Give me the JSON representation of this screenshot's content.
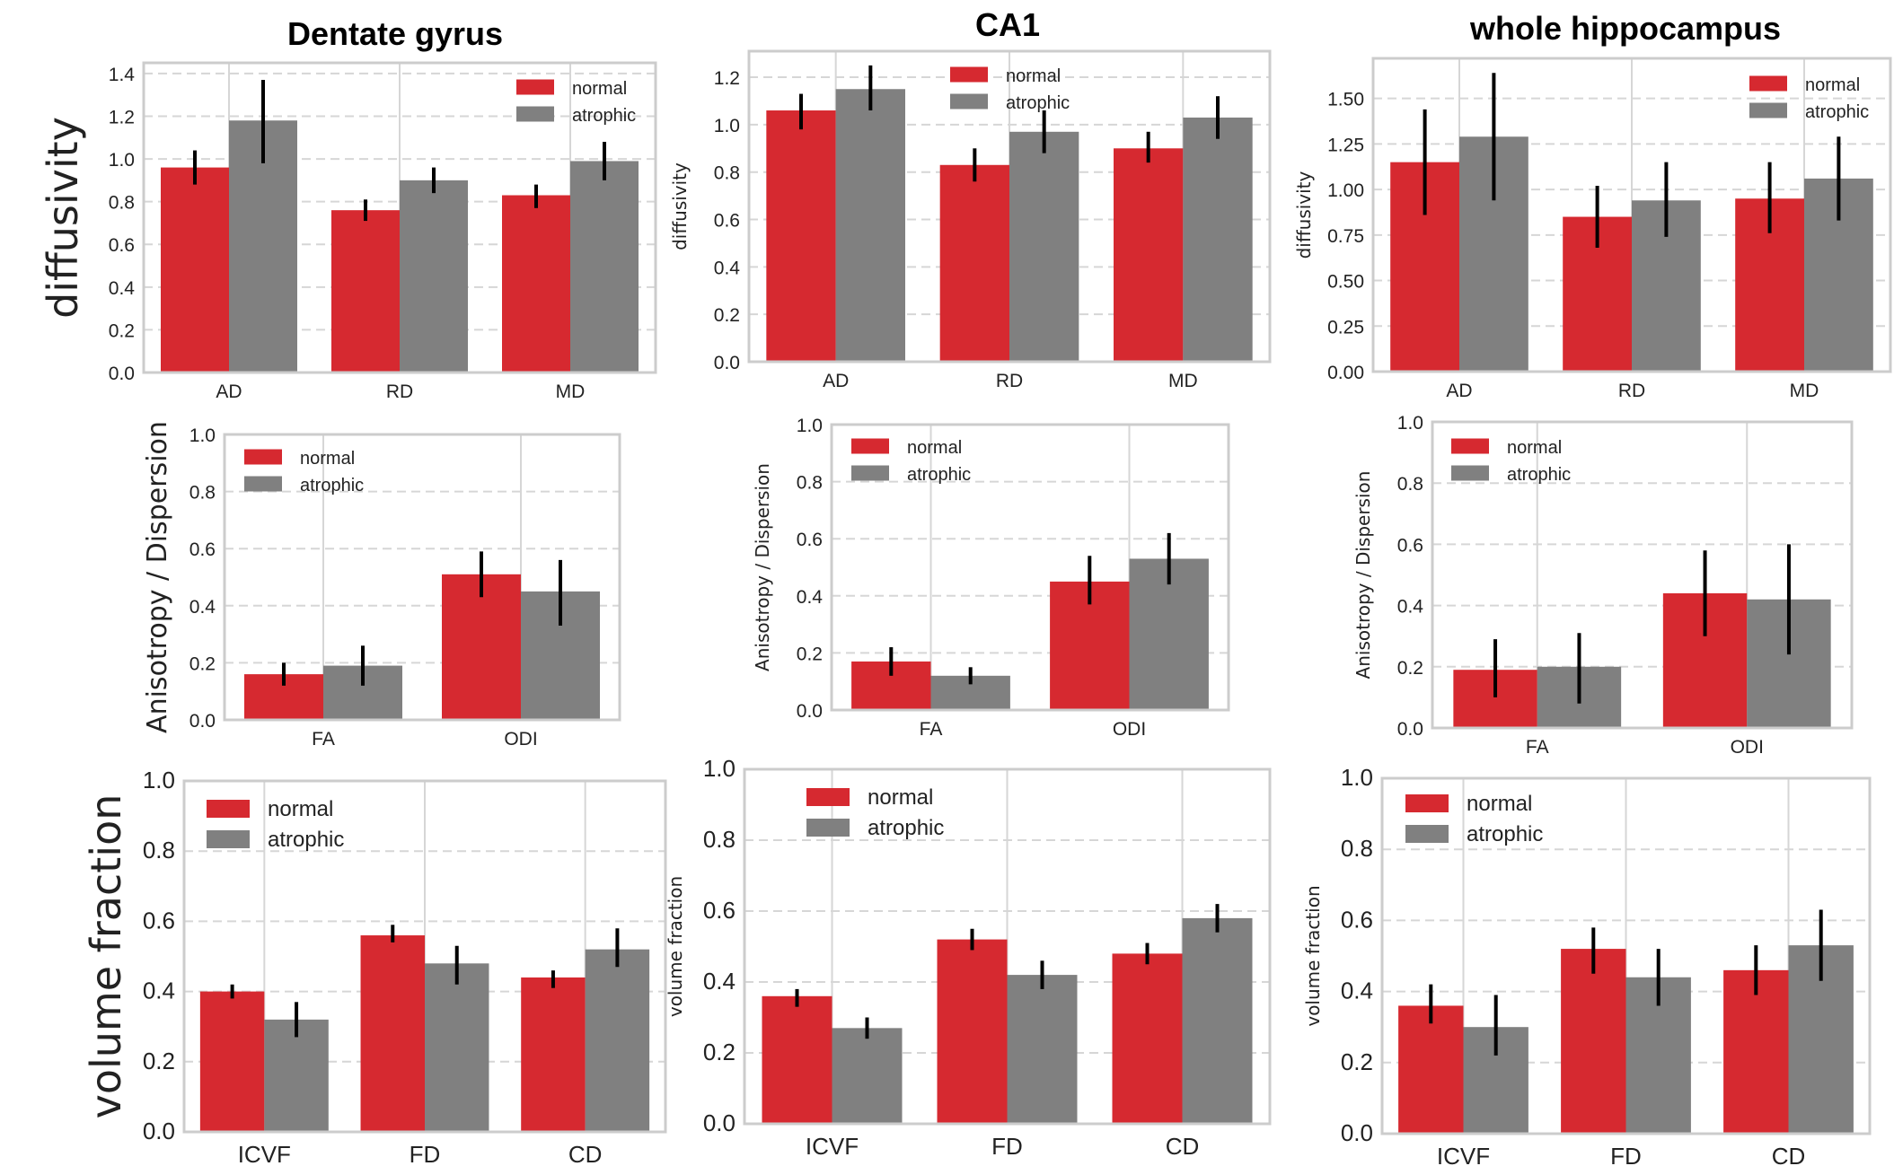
{
  "colors": {
    "normal": "#d62930",
    "atrophic": "#808080",
    "grid": "#d6d6d6",
    "frame": "#cccccc",
    "errorbar": "#000000"
  },
  "column_titles": [
    "Dentate gyrus",
    "CA1",
    "whole hippocampus"
  ],
  "row_labels": [
    "diffusivity",
    "Anisotropy / Dispersion",
    "volume fraction"
  ],
  "chart_data": [
    {
      "id": "dg-diffusivity",
      "type": "bar",
      "title": "Dentate gyrus",
      "region": "Dentate gyrus",
      "xlabel": "",
      "ylabel": "diffusivity",
      "ylabel_style": "big",
      "categories": [
        "AD",
        "RD",
        "MD"
      ],
      "yticks": [
        0.0,
        0.2,
        0.4,
        0.6,
        0.8,
        1.0,
        1.2,
        1.4
      ],
      "ytick_labels": [
        "0.0",
        "0.2",
        "0.4",
        "0.6",
        "0.8",
        "1.0",
        "1.2",
        "1.4"
      ],
      "ylim": [
        0,
        1.45
      ],
      "legend": {
        "placement": "top-right",
        "entries": [
          "normal",
          "atrophic"
        ]
      },
      "series": [
        {
          "name": "normal",
          "values": [
            0.96,
            0.76,
            0.83
          ],
          "err_low": [
            0.88,
            0.71,
            0.77
          ],
          "err_high": [
            1.04,
            0.81,
            0.88
          ]
        },
        {
          "name": "atrophic",
          "values": [
            1.18,
            0.9,
            0.99
          ],
          "err_low": [
            0.98,
            0.84,
            0.9
          ],
          "err_high": [
            1.37,
            0.96,
            1.08
          ]
        }
      ],
      "grid": true
    },
    {
      "id": "ca1-diffusivity",
      "type": "bar",
      "title": "CA1",
      "region": "CA1",
      "xlabel": "",
      "ylabel": "diffusivity",
      "ylabel_style": "small",
      "categories": [
        "AD",
        "RD",
        "MD"
      ],
      "yticks": [
        0.0,
        0.2,
        0.4,
        0.6,
        0.8,
        1.0,
        1.2
      ],
      "ytick_labels": [
        "0.0",
        "0.2",
        "0.4",
        "0.6",
        "0.8",
        "1.0",
        "1.2"
      ],
      "ylim": [
        0,
        1.31
      ],
      "legend": {
        "placement": "top-center",
        "entries": [
          "normal",
          "atrophic"
        ]
      },
      "series": [
        {
          "name": "normal",
          "values": [
            1.06,
            0.83,
            0.9
          ],
          "err_low": [
            0.98,
            0.76,
            0.84
          ],
          "err_high": [
            1.13,
            0.9,
            0.97
          ]
        },
        {
          "name": "atrophic",
          "values": [
            1.15,
            0.97,
            1.03
          ],
          "err_low": [
            1.06,
            0.88,
            0.94
          ],
          "err_high": [
            1.25,
            1.06,
            1.12
          ]
        }
      ],
      "grid": true
    },
    {
      "id": "wh-diffusivity",
      "type": "bar",
      "title": "whole hippocampus",
      "region": "whole hippocampus",
      "xlabel": "",
      "ylabel": "diffusivity",
      "ylabel_style": "small",
      "categories": [
        "AD",
        "RD",
        "MD"
      ],
      "yticks": [
        0.0,
        0.25,
        0.5,
        0.75,
        1.0,
        1.25,
        1.5
      ],
      "ytick_labels": [
        "0.00",
        "0.25",
        "0.50",
        "0.75",
        "1.00",
        "1.25",
        "1.50"
      ],
      "ylim": [
        0,
        1.72
      ],
      "legend": {
        "placement": "top-right",
        "entries": [
          "normal",
          "atrophic"
        ]
      },
      "series": [
        {
          "name": "normal",
          "values": [
            1.15,
            0.85,
            0.95
          ],
          "err_low": [
            0.86,
            0.68,
            0.76
          ],
          "err_high": [
            1.44,
            1.02,
            1.15
          ]
        },
        {
          "name": "atrophic",
          "values": [
            1.29,
            0.94,
            1.06
          ],
          "err_low": [
            0.94,
            0.74,
            0.83
          ],
          "err_high": [
            1.64,
            1.15,
            1.29
          ]
        }
      ],
      "grid": true
    },
    {
      "id": "dg-anisotropy",
      "type": "bar",
      "title": "",
      "region": "Dentate gyrus",
      "xlabel": "",
      "ylabel": "Anisotropy / Dispersion",
      "ylabel_style": "mid",
      "categories": [
        "FA",
        "ODI"
      ],
      "yticks": [
        0.0,
        0.2,
        0.4,
        0.6,
        0.8,
        1.0
      ],
      "ytick_labels": [
        "0.0",
        "0.2",
        "0.4",
        "0.6",
        "0.8",
        "1.0"
      ],
      "ylim": [
        0,
        1.0
      ],
      "legend": {
        "placement": "top-left",
        "entries": [
          "normal",
          "atrophic"
        ]
      },
      "series": [
        {
          "name": "normal",
          "values": [
            0.16,
            0.51
          ],
          "err_low": [
            0.12,
            0.43
          ],
          "err_high": [
            0.2,
            0.59
          ]
        },
        {
          "name": "atrophic",
          "values": [
            0.19,
            0.45
          ],
          "err_low": [
            0.12,
            0.33
          ],
          "err_high": [
            0.26,
            0.56
          ]
        }
      ],
      "grid": true
    },
    {
      "id": "ca1-anisotropy",
      "type": "bar",
      "title": "",
      "region": "CA1",
      "xlabel": "",
      "ylabel": "Anisotropy / Dispersion",
      "ylabel_style": "small",
      "categories": [
        "FA",
        "ODI"
      ],
      "yticks": [
        0.0,
        0.2,
        0.4,
        0.6,
        0.8,
        1.0
      ],
      "ytick_labels": [
        "0.0",
        "0.2",
        "0.4",
        "0.6",
        "0.8",
        "1.0"
      ],
      "ylim": [
        0,
        1.0
      ],
      "legend": {
        "placement": "top-left",
        "entries": [
          "normal",
          "atrophic"
        ]
      },
      "series": [
        {
          "name": "normal",
          "values": [
            0.17,
            0.45
          ],
          "err_low": [
            0.12,
            0.37
          ],
          "err_high": [
            0.22,
            0.54
          ]
        },
        {
          "name": "atrophic",
          "values": [
            0.12,
            0.53
          ],
          "err_low": [
            0.09,
            0.44
          ],
          "err_high": [
            0.15,
            0.62
          ]
        }
      ],
      "grid": true
    },
    {
      "id": "wh-anisotropy",
      "type": "bar",
      "title": "",
      "region": "whole hippocampus",
      "xlabel": "",
      "ylabel": "Anisotropy / Dispersion",
      "ylabel_style": "small",
      "categories": [
        "FA",
        "ODI"
      ],
      "yticks": [
        0.0,
        0.2,
        0.4,
        0.6,
        0.8,
        1.0
      ],
      "ytick_labels": [
        "0.0",
        "0.2",
        "0.4",
        "0.6",
        "0.8",
        "1.0"
      ],
      "ylim": [
        0,
        1.0
      ],
      "legend": {
        "placement": "top-left",
        "entries": [
          "normal",
          "atrophic"
        ]
      },
      "series": [
        {
          "name": "normal",
          "values": [
            0.19,
            0.44
          ],
          "err_low": [
            0.1,
            0.3
          ],
          "err_high": [
            0.29,
            0.58
          ]
        },
        {
          "name": "atrophic",
          "values": [
            0.2,
            0.42
          ],
          "err_low": [
            0.08,
            0.24
          ],
          "err_high": [
            0.31,
            0.6
          ]
        }
      ],
      "grid": true
    },
    {
      "id": "dg-volume",
      "type": "bar",
      "title": "",
      "region": "Dentate gyrus",
      "xlabel": "",
      "ylabel": "volume fraction",
      "ylabel_style": "big",
      "categories": [
        "ICVF",
        "FD",
        "CD"
      ],
      "yticks": [
        0.0,
        0.2,
        0.4,
        0.6,
        0.8,
        1.0
      ],
      "ytick_labels": [
        "0.0",
        "0.2",
        "0.4",
        "0.6",
        "0.8",
        "1.0"
      ],
      "ylim": [
        0,
        1.0
      ],
      "legend": {
        "placement": "top-left",
        "entries": [
          "normal",
          "atrophic"
        ]
      },
      "series": [
        {
          "name": "normal",
          "values": [
            0.4,
            0.56,
            0.44
          ],
          "err_low": [
            0.38,
            0.54,
            0.41
          ],
          "err_high": [
            0.42,
            0.59,
            0.46
          ]
        },
        {
          "name": "atrophic",
          "values": [
            0.32,
            0.48,
            0.52
          ],
          "err_low": [
            0.27,
            0.42,
            0.47
          ],
          "err_high": [
            0.37,
            0.53,
            0.58
          ]
        }
      ],
      "grid": true
    },
    {
      "id": "ca1-volume",
      "type": "bar",
      "title": "",
      "region": "CA1",
      "xlabel": "",
      "ylabel": "volume fraction",
      "ylabel_style": "small",
      "categories": [
        "ICVF",
        "FD",
        "CD"
      ],
      "yticks": [
        0.0,
        0.2,
        0.4,
        0.6,
        0.8,
        1.0
      ],
      "ytick_labels": [
        "0.0",
        "0.2",
        "0.4",
        "0.6",
        "0.8",
        "1.0"
      ],
      "ylim": [
        0,
        1.0
      ],
      "legend": {
        "placement": "top-left",
        "entries": [
          "normal",
          "atrophic"
        ]
      },
      "series": [
        {
          "name": "normal",
          "values": [
            0.36,
            0.52,
            0.48
          ],
          "err_low": [
            0.33,
            0.49,
            0.45
          ],
          "err_high": [
            0.38,
            0.55,
            0.51
          ]
        },
        {
          "name": "atrophic",
          "values": [
            0.27,
            0.42,
            0.58
          ],
          "err_low": [
            0.24,
            0.38,
            0.54
          ],
          "err_high": [
            0.3,
            0.46,
            0.62
          ]
        }
      ],
      "grid": true
    },
    {
      "id": "wh-volume",
      "type": "bar",
      "title": "",
      "region": "whole hippocampus",
      "xlabel": "",
      "ylabel": "volume fraction",
      "ylabel_style": "small",
      "categories": [
        "ICVF",
        "FD",
        "CD"
      ],
      "yticks": [
        0.0,
        0.2,
        0.4,
        0.6,
        0.8,
        1.0
      ],
      "ytick_labels": [
        "0.0",
        "0.2",
        "0.4",
        "0.6",
        "0.8",
        "1.0"
      ],
      "ylim": [
        0,
        1.0
      ],
      "legend": {
        "placement": "top-left",
        "entries": [
          "normal",
          "atrophic"
        ]
      },
      "series": [
        {
          "name": "normal",
          "values": [
            0.36,
            0.52,
            0.46
          ],
          "err_low": [
            0.31,
            0.45,
            0.39
          ],
          "err_high": [
            0.42,
            0.58,
            0.53
          ]
        },
        {
          "name": "atrophic",
          "values": [
            0.3,
            0.44,
            0.53
          ],
          "err_low": [
            0.22,
            0.36,
            0.43
          ],
          "err_high": [
            0.39,
            0.52,
            0.63
          ]
        }
      ],
      "grid": true
    }
  ]
}
